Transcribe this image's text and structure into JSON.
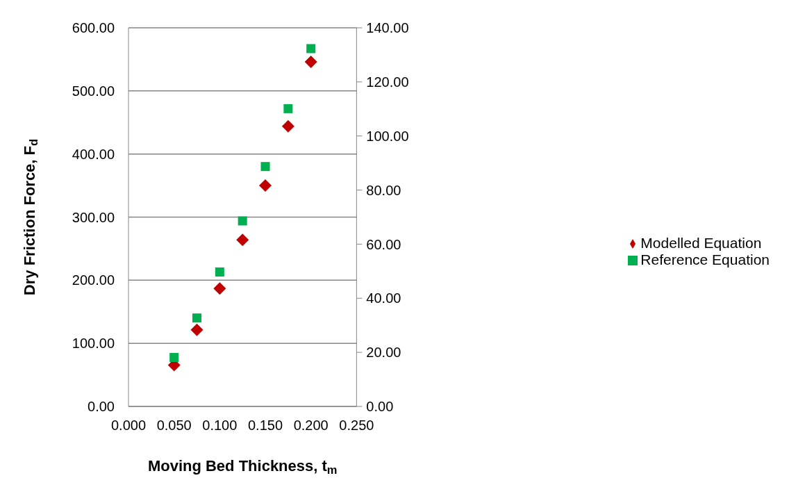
{
  "chart_data": {
    "type": "scatter",
    "xlabel": "Moving Bed Thickness, t$_{m}$",
    "ylabel": "Dry Friction Force, F$_{d}$",
    "series": [
      {
        "name": "Modelled Equation",
        "color": "#c00000",
        "marker": "diamond",
        "x": [
          0.05,
          0.075,
          0.1,
          0.125,
          0.15,
          0.175,
          0.2
        ],
        "values": [
          65.5,
          121.5,
          187,
          264,
          350,
          444,
          546
        ]
      },
      {
        "name": "Reference Equation",
        "color": "#00b050",
        "marker": "square",
        "axis": "y2",
        "x": [
          0.05,
          0.075,
          0.1,
          0.125,
          0.15,
          0.175,
          0.2
        ],
        "values": [
          18.1,
          32.7,
          49.7,
          68.6,
          88.7,
          110.1,
          132.3
        ]
      }
    ],
    "xlim": [
      0,
      0.25
    ],
    "xticks": [
      {
        "value": 0,
        "label": "0.000"
      },
      {
        "value": 0.05,
        "label": "0.050"
      },
      {
        "value": 0.1,
        "label": "0.100"
      },
      {
        "value": 0.15,
        "label": "0.150"
      },
      {
        "value": 0.2,
        "label": "0.200"
      },
      {
        "value": 0.25,
        "label": "0.250"
      }
    ],
    "ylim": [
      0,
      600
    ],
    "yticks": [
      {
        "value": 0,
        "label": "0.00"
      },
      {
        "value": 100,
        "label": "100.00"
      },
      {
        "value": 200,
        "label": "200.00"
      },
      {
        "value": 300,
        "label": "300.00"
      },
      {
        "value": 400,
        "label": "400.00"
      },
      {
        "value": 500,
        "label": "500.00"
      },
      {
        "value": 600,
        "label": "600.00"
      }
    ],
    "y2lim": [
      0,
      140
    ],
    "y2ticks": [
      {
        "value": 0,
        "label": "0.00"
      },
      {
        "value": 20,
        "label": "20.00"
      },
      {
        "value": 40,
        "label": "40.00"
      },
      {
        "value": 60,
        "label": "60.00"
      },
      {
        "value": 80,
        "label": "80.00"
      },
      {
        "value": 100,
        "label": "100.00"
      },
      {
        "value": 120,
        "label": "120.00"
      },
      {
        "value": 140,
        "label": "140.00"
      }
    ],
    "grid": "y",
    "legend": "right"
  }
}
